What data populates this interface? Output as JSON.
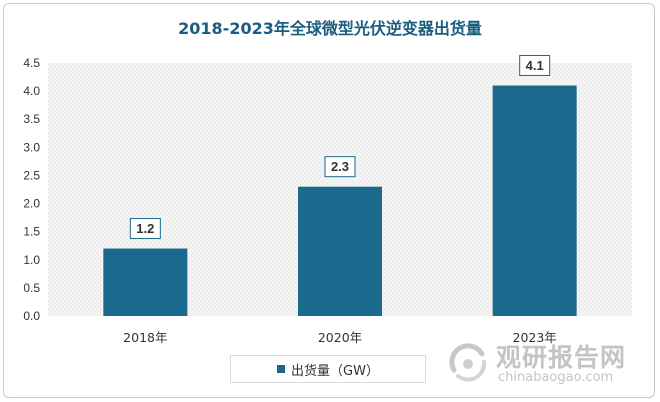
{
  "chart_data": {
    "type": "bar",
    "title": "2018-2023年全球微型光伏逆变器出货量",
    "categories": [
      "2018年",
      "2020年",
      "2023年"
    ],
    "series": [
      {
        "name": "出货量（GW）",
        "values": [
          1.2,
          2.3,
          4.1
        ]
      }
    ],
    "data_labels": [
      "1.2",
      "2.3",
      "4.1"
    ],
    "ylim": [
      0,
      4.5
    ],
    "yticks": [
      "0.0",
      "0.5",
      "1.0",
      "1.5",
      "2.0",
      "2.5",
      "3.0",
      "3.5",
      "4.0",
      "4.5"
    ],
    "grid": false,
    "plot_background": "hatched-light-gray",
    "legend_position": "bottom",
    "bar_color": "#1b6a8e",
    "title_color": "#1a5d80"
  },
  "watermark": {
    "text_cn": "观研报告网",
    "text_en": "chinabaogao.com"
  }
}
